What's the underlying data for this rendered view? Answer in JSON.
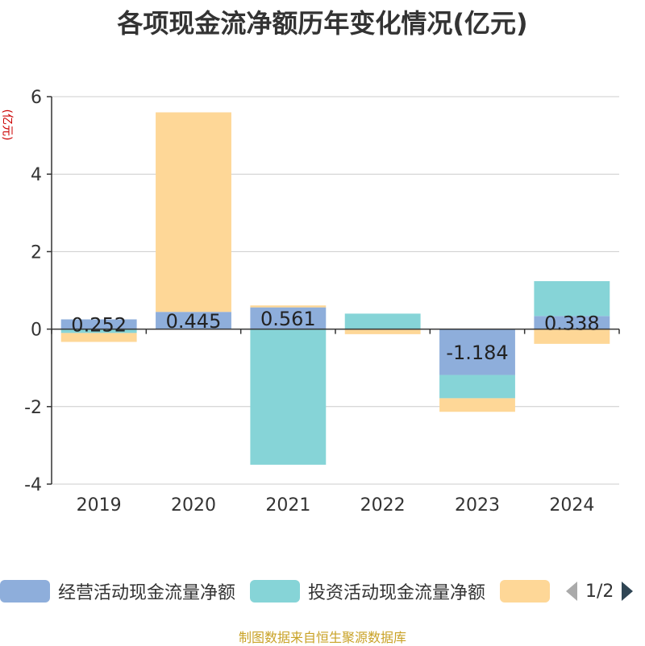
{
  "chart_data": {
    "type": "bar",
    "stacked": true,
    "title": "各项现金流净额历年变化情况(亿元)",
    "ylabel": "(亿元)",
    "categories": [
      "2019",
      "2020",
      "2021",
      "2022",
      "2023",
      "2024"
    ],
    "ylim": [
      -4,
      6
    ],
    "yticks": [
      -4,
      -2,
      0,
      2,
      4,
      6
    ],
    "grid": true,
    "legend_position": "bottom",
    "series": [
      {
        "name": "经营活动现金流量净额",
        "color": "#8eaedb",
        "values": [
          0.252,
          0.445,
          0.561,
          0.0,
          -1.184,
          0.338
        ],
        "labels": [
          "0.252",
          "0.445",
          "0.561",
          "",
          "-1.184",
          "0.338"
        ]
      },
      {
        "name": "投资活动现金流量净额",
        "color": "#86d4d7",
        "values": [
          -0.1,
          0.0,
          -3.5,
          0.4,
          -0.6,
          0.9
        ]
      },
      {
        "name": "",
        "color": "#fed797",
        "values": [
          -0.23,
          5.15,
          0.05,
          -0.13,
          -0.35,
          -0.38
        ]
      }
    ]
  },
  "legend": {
    "page": "1/2"
  },
  "source": "制图数据来自恒生聚源数据库"
}
